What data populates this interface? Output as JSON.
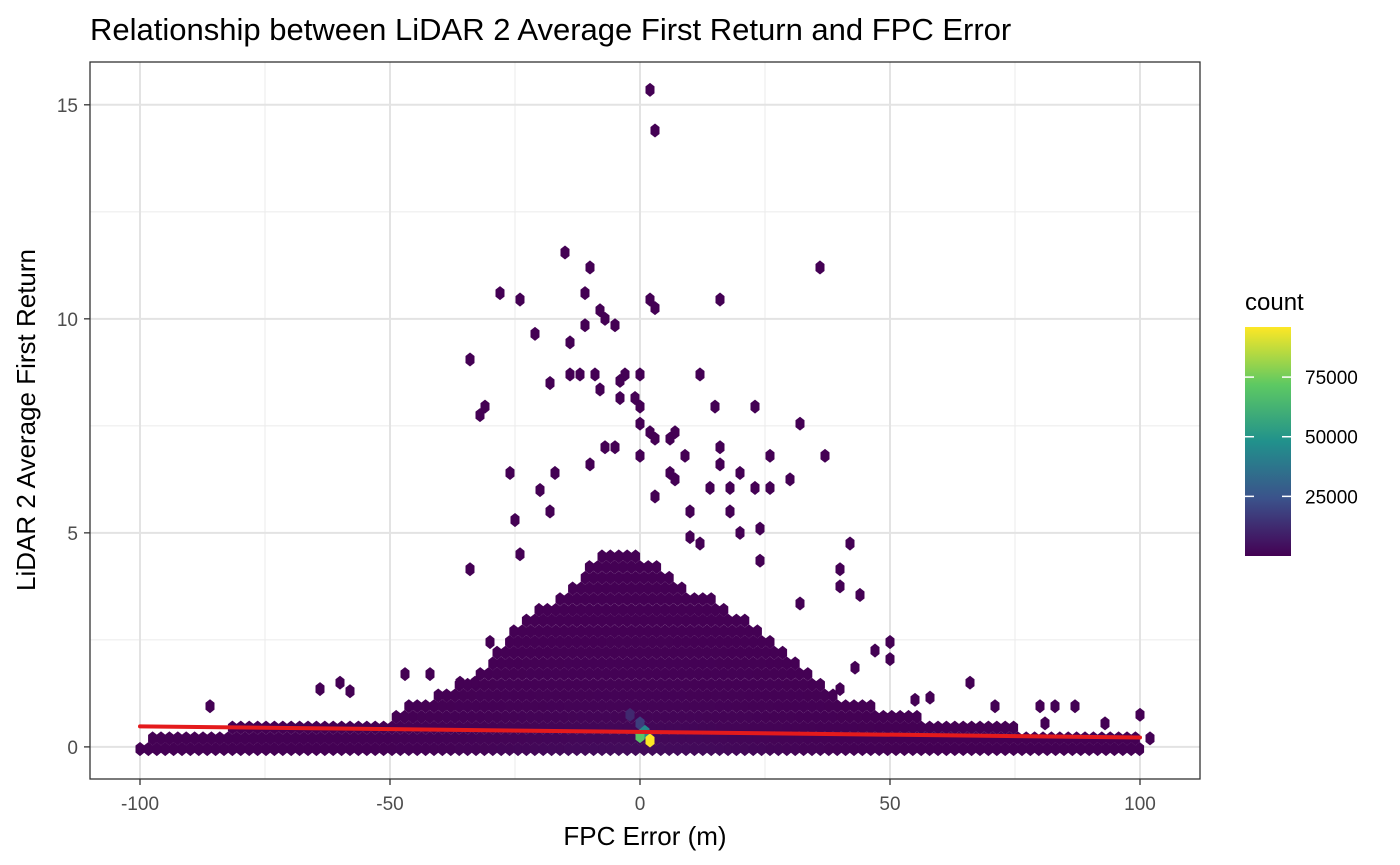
{
  "chart_data": {
    "type": "hexbin",
    "title": "Relationship between LiDAR 2 Average First Return and FPC Error",
    "xlabel": "FPC Error (m)",
    "ylabel": "LiDAR 2 Average First Return",
    "xlim": [
      -110,
      112
    ],
    "ylim": [
      -0.75,
      16
    ],
    "x_ticks": [
      -100,
      -50,
      0,
      50,
      100
    ],
    "x_tick_labels": [
      "-100",
      "-50",
      "0",
      "50",
      "100"
    ],
    "y_ticks": [
      0,
      5,
      10,
      15
    ],
    "y_tick_labels": [
      "0",
      "5",
      "10",
      "15"
    ],
    "grid": true,
    "legend": {
      "title": "count",
      "position": "right",
      "range": [
        1,
        96000
      ],
      "ticks": [
        25000,
        50000,
        75000
      ],
      "tick_labels": [
        "25000",
        "50000",
        "75000"
      ],
      "colors": [
        "#440154",
        "#3b528b",
        "#21918c",
        "#5ec962",
        "#fde725"
      ]
    },
    "trend_line": {
      "color": "#e41a1c",
      "points": [
        [
          -100,
          0.48
        ],
        [
          100,
          0.22
        ]
      ]
    },
    "hex_size_x": 1.68,
    "hex_size_y": 0.25,
    "dense_region": [
      [
        -100,
        0.15
      ],
      [
        -90,
        0.4
      ],
      [
        -75,
        0.5
      ],
      [
        -60,
        0.55
      ],
      [
        -50,
        0.7
      ],
      [
        -44,
        1.1
      ],
      [
        -38,
        1.3
      ],
      [
        -30,
        2.0
      ],
      [
        -24,
        2.9
      ],
      [
        -18,
        3.4
      ],
      [
        -14,
        3.7
      ],
      [
        -8,
        4.5
      ],
      [
        -2,
        4.6
      ],
      [
        4,
        4.2
      ],
      [
        10,
        3.6
      ],
      [
        16,
        3.4
      ],
      [
        22,
        2.9
      ],
      [
        28,
        2.3
      ],
      [
        34,
        1.7
      ],
      [
        40,
        1.2
      ],
      [
        48,
        0.9
      ],
      [
        56,
        0.7
      ],
      [
        66,
        0.5
      ],
      [
        76,
        0.45
      ],
      [
        86,
        0.4
      ],
      [
        100,
        0.2
      ]
    ],
    "hex_points": [
      {
        "x": 2,
        "y": 15.35,
        "count": 1
      },
      {
        "x": 3,
        "y": 14.4,
        "count": 1
      },
      {
        "x": -15,
        "y": 11.55,
        "count": 1
      },
      {
        "x": -10,
        "y": 11.2,
        "count": 1
      },
      {
        "x": 36,
        "y": 11.2,
        "count": 1
      },
      {
        "x": -28,
        "y": 10.6,
        "count": 1
      },
      {
        "x": -24,
        "y": 10.45,
        "count": 1
      },
      {
        "x": -11,
        "y": 10.6,
        "count": 1
      },
      {
        "x": 2,
        "y": 10.45,
        "count": 1
      },
      {
        "x": 3,
        "y": 10.25,
        "count": 1
      },
      {
        "x": 16,
        "y": 10.45,
        "count": 1
      },
      {
        "x": -8,
        "y": 10.2,
        "count": 1
      },
      {
        "x": -7,
        "y": 10.0,
        "count": 1
      },
      {
        "x": -5,
        "y": 9.85,
        "count": 1
      },
      {
        "x": -11,
        "y": 9.85,
        "count": 1
      },
      {
        "x": -21,
        "y": 9.65,
        "count": 1
      },
      {
        "x": -14,
        "y": 9.45,
        "count": 1
      },
      {
        "x": -34,
        "y": 9.05,
        "count": 1
      },
      {
        "x": -14,
        "y": 8.7,
        "count": 1
      },
      {
        "x": -12,
        "y": 8.7,
        "count": 1
      },
      {
        "x": -9,
        "y": 8.7,
        "count": 1
      },
      {
        "x": -3,
        "y": 8.7,
        "count": 1
      },
      {
        "x": 0,
        "y": 8.7,
        "count": 1
      },
      {
        "x": 12,
        "y": 8.7,
        "count": 1
      },
      {
        "x": -18,
        "y": 8.5,
        "count": 1
      },
      {
        "x": -4,
        "y": 8.55,
        "count": 1
      },
      {
        "x": -8,
        "y": 8.35,
        "count": 1
      },
      {
        "x": -4,
        "y": 8.15,
        "count": 1
      },
      {
        "x": -1,
        "y": 8.15,
        "count": 1
      },
      {
        "x": 0,
        "y": 7.95,
        "count": 1
      },
      {
        "x": -31,
        "y": 7.95,
        "count": 1
      },
      {
        "x": -32,
        "y": 7.75,
        "count": 1
      },
      {
        "x": 15,
        "y": 7.95,
        "count": 1
      },
      {
        "x": 23,
        "y": 7.95,
        "count": 1
      },
      {
        "x": 0,
        "y": 7.55,
        "count": 1
      },
      {
        "x": 2,
        "y": 7.35,
        "count": 1
      },
      {
        "x": 3,
        "y": 7.2,
        "count": 1
      },
      {
        "x": 7,
        "y": 7.35,
        "count": 1
      },
      {
        "x": 6,
        "y": 7.2,
        "count": 1
      },
      {
        "x": 16,
        "y": 7.0,
        "count": 1
      },
      {
        "x": 32,
        "y": 7.55,
        "count": 1
      },
      {
        "x": -7,
        "y": 7.0,
        "count": 1
      },
      {
        "x": -5,
        "y": 7.0,
        "count": 1
      },
      {
        "x": 0,
        "y": 6.8,
        "count": 1
      },
      {
        "x": 9,
        "y": 6.8,
        "count": 1
      },
      {
        "x": 26,
        "y": 6.8,
        "count": 1
      },
      {
        "x": 37,
        "y": 6.8,
        "count": 1
      },
      {
        "x": 16,
        "y": 6.6,
        "count": 1
      },
      {
        "x": -10,
        "y": 6.6,
        "count": 1
      },
      {
        "x": -26,
        "y": 6.4,
        "count": 1
      },
      {
        "x": -17,
        "y": 6.4,
        "count": 1
      },
      {
        "x": 6,
        "y": 6.4,
        "count": 1
      },
      {
        "x": 20,
        "y": 6.4,
        "count": 1
      },
      {
        "x": -20,
        "y": 6.0,
        "count": 1
      },
      {
        "x": 7,
        "y": 6.25,
        "count": 1
      },
      {
        "x": 14,
        "y": 6.05,
        "count": 1
      },
      {
        "x": 18,
        "y": 6.05,
        "count": 1
      },
      {
        "x": 23,
        "y": 6.05,
        "count": 1
      },
      {
        "x": 30,
        "y": 6.25,
        "count": 1
      },
      {
        "x": 26,
        "y": 6.05,
        "count": 1
      },
      {
        "x": 3,
        "y": 5.85,
        "count": 1
      },
      {
        "x": -25,
        "y": 5.3,
        "count": 1
      },
      {
        "x": -18,
        "y": 5.5,
        "count": 1
      },
      {
        "x": 10,
        "y": 5.5,
        "count": 1
      },
      {
        "x": 18,
        "y": 5.5,
        "count": 1
      },
      {
        "x": 24,
        "y": 5.1,
        "count": 1
      },
      {
        "x": 20,
        "y": 5.0,
        "count": 1
      },
      {
        "x": 10,
        "y": 4.9,
        "count": 1
      },
      {
        "x": 12,
        "y": 4.75,
        "count": 1
      },
      {
        "x": 42,
        "y": 4.75,
        "count": 1
      },
      {
        "x": -24,
        "y": 4.5,
        "count": 1
      },
      {
        "x": -34,
        "y": 4.15,
        "count": 1
      },
      {
        "x": 24,
        "y": 4.35,
        "count": 1
      },
      {
        "x": 40,
        "y": 4.15,
        "count": 1
      },
      {
        "x": 40,
        "y": 3.75,
        "count": 1
      },
      {
        "x": 44,
        "y": 3.55,
        "count": 1
      },
      {
        "x": 32,
        "y": 3.35,
        "count": 1
      },
      {
        "x": 50,
        "y": 2.45,
        "count": 1
      },
      {
        "x": 47,
        "y": 2.25,
        "count": 1
      },
      {
        "x": 50,
        "y": 2.05,
        "count": 1
      },
      {
        "x": 43,
        "y": 1.85,
        "count": 1
      },
      {
        "x": 66,
        "y": 1.5,
        "count": 1
      },
      {
        "x": -86,
        "y": 0.95,
        "count": 1
      },
      {
        "x": -60,
        "y": 1.5,
        "count": 1
      },
      {
        "x": -64,
        "y": 1.35,
        "count": 1
      },
      {
        "x": -58,
        "y": 1.3,
        "count": 1
      },
      {
        "x": -47,
        "y": 1.7,
        "count": 1
      },
      {
        "x": -42,
        "y": 1.7,
        "count": 1
      },
      {
        "x": -36,
        "y": 1.5,
        "count": 1
      },
      {
        "x": -33,
        "y": 1.5,
        "count": 1
      },
      {
        "x": -30,
        "y": 2.45,
        "count": 1
      },
      {
        "x": 40,
        "y": 1.35,
        "count": 1
      },
      {
        "x": 55,
        "y": 1.1,
        "count": 1
      },
      {
        "x": 58,
        "y": 1.15,
        "count": 1
      },
      {
        "x": 71,
        "y": 0.95,
        "count": 1
      },
      {
        "x": 80,
        "y": 0.95,
        "count": 1
      },
      {
        "x": 83,
        "y": 0.95,
        "count": 1
      },
      {
        "x": 87,
        "y": 0.95,
        "count": 1
      },
      {
        "x": 81,
        "y": 0.55,
        "count": 1
      },
      {
        "x": 93,
        "y": 0.55,
        "count": 1
      },
      {
        "x": 100,
        "y": 0.75,
        "count": 1
      },
      {
        "x": 102,
        "y": 0.2,
        "count": 1
      },
      {
        "x": -2,
        "y": 0.75,
        "count": 12000
      },
      {
        "x": 0,
        "y": 0.55,
        "count": 18000
      },
      {
        "x": 1,
        "y": 0.35,
        "count": 45000
      },
      {
        "x": 2,
        "y": 0.15,
        "count": 96000
      },
      {
        "x": 0,
        "y": 0.25,
        "count": 70000
      }
    ]
  }
}
